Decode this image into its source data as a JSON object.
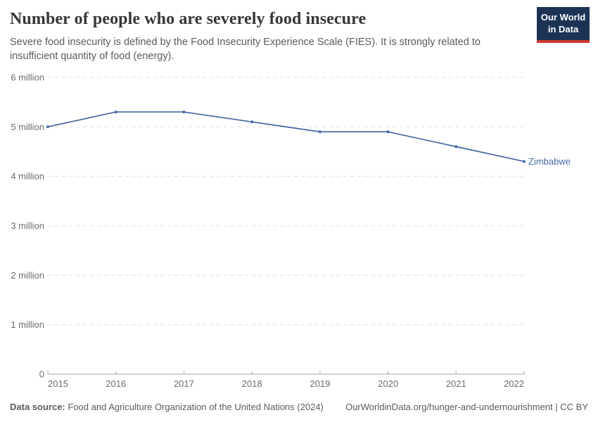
{
  "header": {
    "title": "Number of people who are severely food insecure",
    "subtitle": "Severe food insecurity is defined by the Food Insecurity Experience Scale (FIES). It is strongly related to insufficient quantity of food (energy).",
    "logo": {
      "line1": "Our World",
      "line2": "in Data"
    }
  },
  "chart_data": {
    "type": "line",
    "title": "Number of people who are severely food insecure",
    "x": [
      2015,
      2016,
      2017,
      2018,
      2019,
      2020,
      2021,
      2022
    ],
    "series": [
      {
        "name": "Zimbabwe",
        "values_millions": [
          5.0,
          5.3,
          5.3,
          5.1,
          4.9,
          4.9,
          4.6,
          4.3
        ],
        "color": "#4668a4"
      }
    ],
    "unit": "people",
    "ylim_millions": [
      0,
      6
    ],
    "yticks": [
      {
        "value": 0,
        "label": "0"
      },
      {
        "value": 1,
        "label": "1 million"
      },
      {
        "value": 2,
        "label": "2 million"
      },
      {
        "value": 3,
        "label": "3 million"
      },
      {
        "value": 4,
        "label": "4 million"
      },
      {
        "value": 5,
        "label": "5 million"
      },
      {
        "value": 6,
        "label": "6 million"
      }
    ],
    "grid": true,
    "legend_position": "end-of-line"
  },
  "footer": {
    "datasource_label": "Data source:",
    "datasource_text": " Food and Agriculture Organization of the United Nations (2024)",
    "credit": "OurWorldinData.org/hunger-and-undernourishment | CC BY"
  },
  "colors": {
    "line": "#4668a4",
    "logo_bg": "#1d3356",
    "logo_stripe": "#d0382e",
    "grid": "#dedede",
    "axis": "#a6a6a6",
    "tick_label": "#6c6c6c",
    "title": "#353637",
    "subtitle": "#5b5b5b"
  }
}
